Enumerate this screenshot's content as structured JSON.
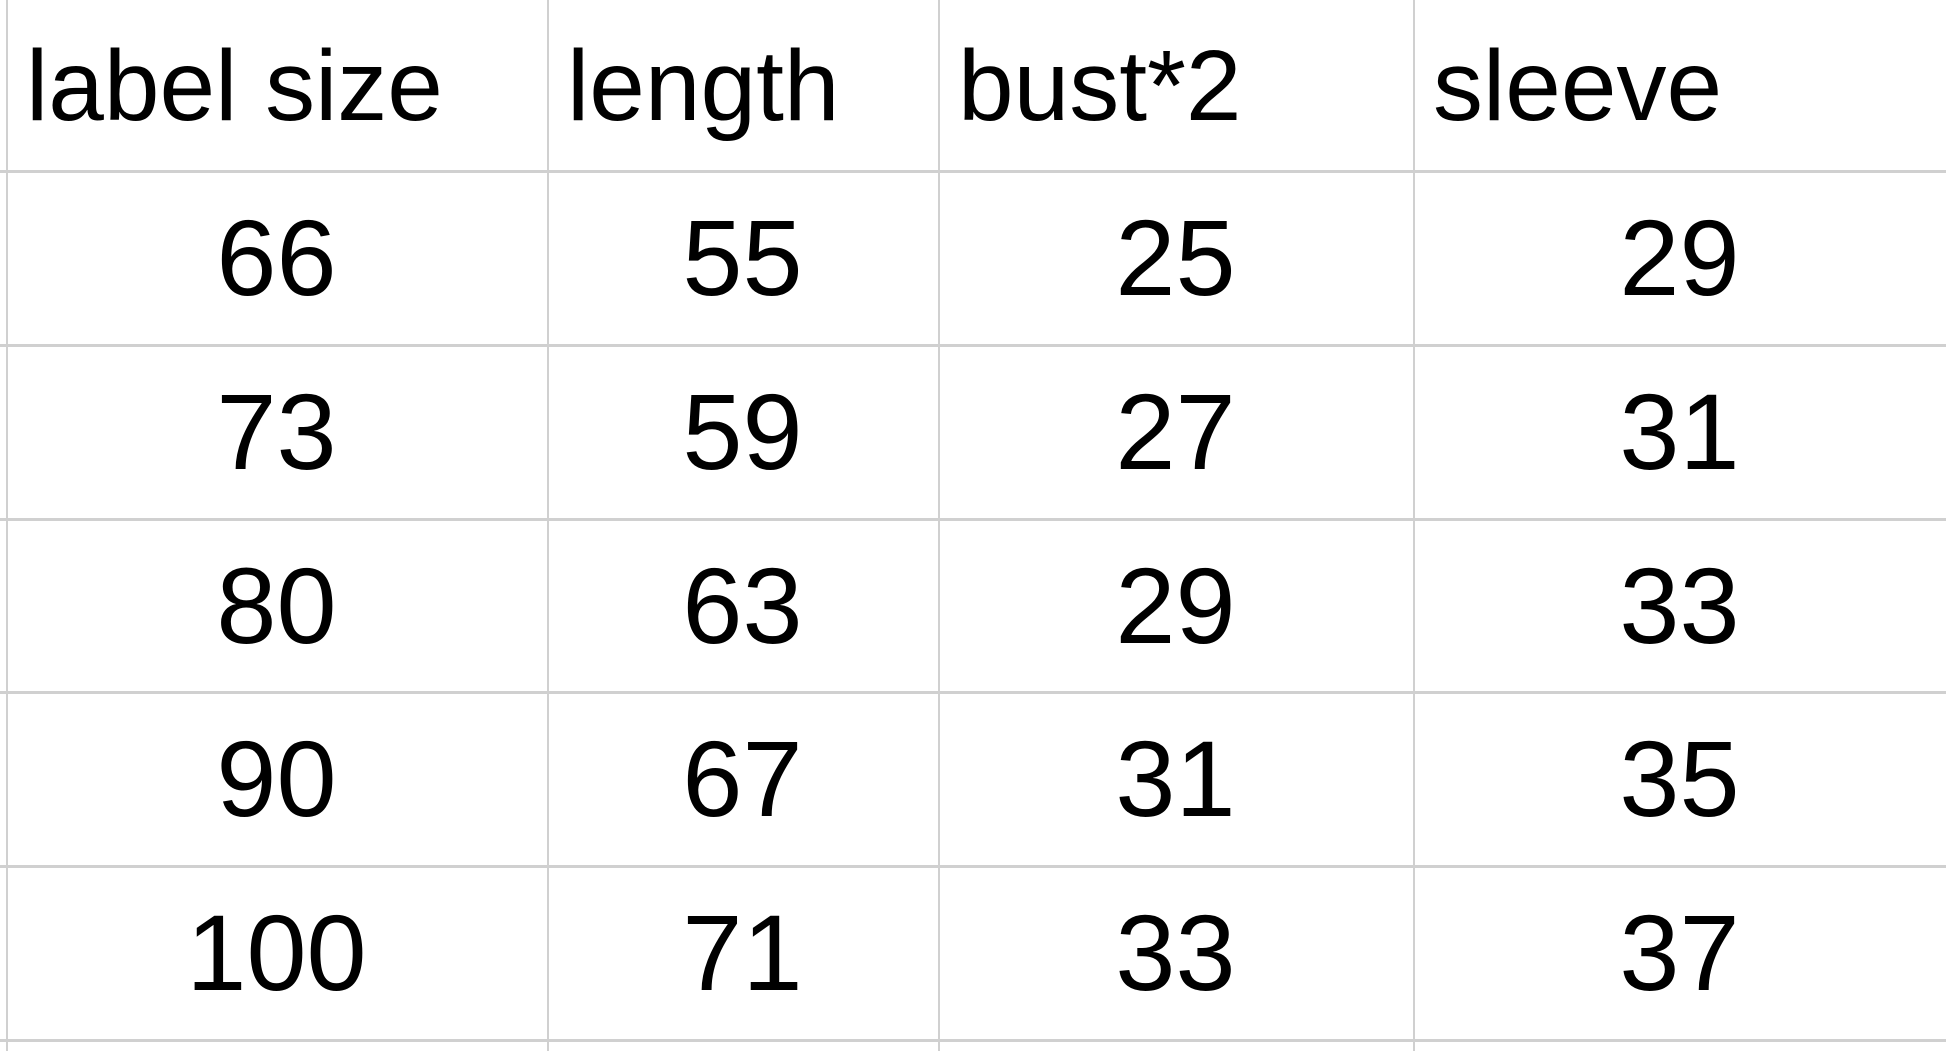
{
  "table": {
    "headers": [
      "label size",
      "length",
      "bust*2",
      "sleeve"
    ],
    "rows": [
      [
        "66",
        "55",
        "25",
        "29"
      ],
      [
        "73",
        "59",
        "27",
        "31"
      ],
      [
        "80",
        "63",
        "29",
        "33"
      ],
      [
        "90",
        "67",
        "31",
        "35"
      ],
      [
        "100",
        "71",
        "33",
        "37"
      ]
    ]
  }
}
